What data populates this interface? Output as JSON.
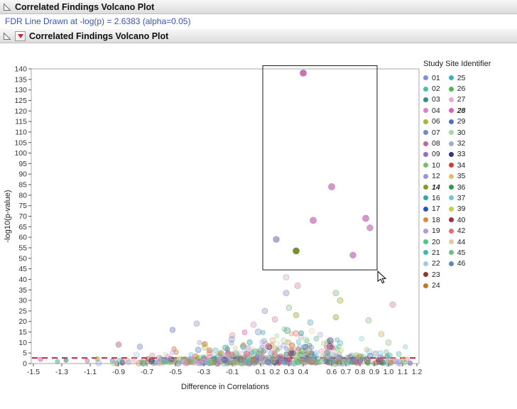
{
  "window": {
    "outline1_title": "Correlated Findings Volcano Plot",
    "fdr_note": "FDR Line Drawn at -log(p) = 2.6383 (alpha=0.05)",
    "outline2_title": "Correlated Findings Volcano Plot"
  },
  "legend": {
    "title": "Study Site Identifier",
    "emphasized": [
      "14",
      "28"
    ],
    "columns": [
      [
        {
          "label": "01",
          "color": "#8090d8"
        },
        {
          "label": "02",
          "color": "#58b8a0"
        },
        {
          "label": "03",
          "color": "#30907c"
        },
        {
          "label": "04",
          "color": "#d880c8"
        },
        {
          "label": "06",
          "color": "#a8b440"
        },
        {
          "label": "07",
          "color": "#7088cc"
        },
        {
          "label": "08",
          "color": "#c06890"
        },
        {
          "label": "09",
          "color": "#9070c4"
        },
        {
          "label": "10",
          "color": "#70c070"
        },
        {
          "label": "12",
          "color": "#a090d8"
        },
        {
          "label": "14",
          "color": "#8a9a1e"
        },
        {
          "label": "16",
          "color": "#38a0b0"
        },
        {
          "label": "17",
          "color": "#2858a8"
        },
        {
          "label": "18",
          "color": "#e08838"
        },
        {
          "label": "19",
          "color": "#b898d4"
        },
        {
          "label": "20",
          "color": "#48c880"
        },
        {
          "label": "21",
          "color": "#38bdaa"
        },
        {
          "label": "22",
          "color": "#a0c8e8"
        },
        {
          "label": "23",
          "color": "#8c3838"
        },
        {
          "label": "24",
          "color": "#c07830"
        }
      ],
      [
        {
          "label": "25",
          "color": "#40b0b8"
        },
        {
          "label": "26",
          "color": "#50b850"
        },
        {
          "label": "27",
          "color": "#eca8cc"
        },
        {
          "label": "28",
          "color": "#e060b8"
        },
        {
          "label": "29",
          "color": "#5070c8"
        },
        {
          "label": "30",
          "color": "#a8d8a0"
        },
        {
          "label": "32",
          "color": "#a0b0c0"
        },
        {
          "label": "33",
          "color": "#343478"
        },
        {
          "label": "34",
          "color": "#d04038"
        },
        {
          "label": "35",
          "color": "#d8c070"
        },
        {
          "label": "36",
          "color": "#309848"
        },
        {
          "label": "37",
          "color": "#80bde0"
        },
        {
          "label": "39",
          "color": "#c0d050"
        },
        {
          "label": "40",
          "color": "#a03048"
        },
        {
          "label": "42",
          "color": "#e07070"
        },
        {
          "label": "44",
          "color": "#e0c8a0"
        },
        {
          "label": "45",
          "color": "#70bc88"
        },
        {
          "label": "46",
          "color": "#6088b8"
        }
      ]
    ]
  },
  "chart_data": {
    "type": "scatter",
    "title": "Correlated Findings Volcano Plot",
    "xlabel": "Difference in Correlations",
    "ylabel": "-log10(p-value)",
    "xlim": [
      -1.515,
      1.215
    ],
    "ylim": [
      0,
      140
    ],
    "y_ticks": {
      "min": 0,
      "max": 140,
      "step": 5
    },
    "x_tick_labels": [
      "-1.5",
      "-1.3",
      "-1.1",
      "-0.9",
      "-0.7",
      "-0.5",
      "-0.3",
      "-0.1",
      "0.1",
      "0.2",
      "0.3",
      "0.4",
      "0.6",
      "0.7",
      "0.8",
      "0.9",
      "1.0",
      "1.1",
      "1.2"
    ],
    "fdr_line": {
      "y": 2.6383,
      "alpha_level": 0.05,
      "color": "#c8233a",
      "style": "dashed"
    },
    "selection_rect": {
      "x1": 0.115,
      "y1": 44.5,
      "x2": 0.92,
      "y2": 141.5
    },
    "highlight_points": [
      {
        "x": 0.4,
        "y": 138.0,
        "color": "#c85fb4",
        "alpha": 0.9,
        "r": 4.6
      },
      {
        "x": 0.6,
        "y": 84.0,
        "color": "#d583c6",
        "alpha": 0.85,
        "r": 4.6
      },
      {
        "x": 0.47,
        "y": 68.0,
        "color": "#d583c6",
        "alpha": 0.85,
        "r": 4.6
      },
      {
        "x": 0.84,
        "y": 69.0,
        "color": "#d583c6",
        "alpha": 0.85,
        "r": 4.6
      },
      {
        "x": 0.87,
        "y": 64.5,
        "color": "#d583c6",
        "alpha": 0.8,
        "r": 4.4
      },
      {
        "x": 0.21,
        "y": 59.0,
        "color": "#a98fd0",
        "alpha": 0.8,
        "r": 4.4
      },
      {
        "x": 0.35,
        "y": 53.5,
        "color": "#6f8a1a",
        "alpha": 0.95,
        "r": 4.6
      },
      {
        "x": 0.75,
        "y": 51.5,
        "color": "#d583c6",
        "alpha": 0.85,
        "r": 4.4
      }
    ],
    "mid_points": [
      {
        "x": 0.36,
        "y": 37.0,
        "color": "#e8a8c8",
        "alpha": 0.55,
        "r": 4.2
      },
      {
        "x": 0.28,
        "y": 41.0,
        "color": "#e0b8d8",
        "alpha": 0.45,
        "r": 4.0
      },
      {
        "x": 0.28,
        "y": 33.5,
        "color": "#b39ddb",
        "alpha": 0.5,
        "r": 4.2
      },
      {
        "x": 0.63,
        "y": 33.5,
        "color": "#a8d8a0",
        "alpha": 0.6,
        "r": 4.2
      },
      {
        "x": 0.66,
        "y": 30.0,
        "color": "#c2d45e",
        "alpha": 0.55,
        "r": 4.2
      },
      {
        "x": 1.03,
        "y": 28.0,
        "color": "#e8a8c8",
        "alpha": 0.6,
        "r": 4.2
      },
      {
        "x": 0.3,
        "y": 26.5,
        "color": "#a8d8a0",
        "alpha": 0.5,
        "r": 4.0
      },
      {
        "x": 0.13,
        "y": 25.0,
        "color": "#b39ddb",
        "alpha": 0.45,
        "r": 4.0
      },
      {
        "x": 0.35,
        "y": 23.0,
        "color": "#b4bc4a",
        "alpha": 0.5,
        "r": 4.0
      },
      {
        "x": 0.63,
        "y": 22.0,
        "color": "#b4bc4a",
        "alpha": 0.5,
        "r": 4.0
      },
      {
        "x": 0.2,
        "y": 21.0,
        "color": "#e8a8c8",
        "alpha": 0.5,
        "r": 4.0
      },
      {
        "x": 0.86,
        "y": 20.5,
        "color": "#a8d8a0",
        "alpha": 0.5,
        "r": 4.0
      },
      {
        "x": 0.45,
        "y": 19.5,
        "color": "#88c0e0",
        "alpha": 0.5,
        "r": 4.0
      },
      {
        "x": -0.35,
        "y": 19.0,
        "color": "#b39ddb",
        "alpha": 0.45,
        "r": 4.0
      },
      {
        "x": 0.05,
        "y": 18.5,
        "color": "#e8a8c8",
        "alpha": 0.45,
        "r": 4.0
      },
      {
        "x": -0.52,
        "y": 16.0,
        "color": "#8090d8",
        "alpha": 0.5,
        "r": 4.0
      },
      {
        "x": -0.9,
        "y": 9.0,
        "color": "#c06890",
        "alpha": 0.5,
        "r": 4.0
      },
      {
        "x": -0.75,
        "y": 8.0,
        "color": "#8090d8",
        "alpha": 0.45,
        "r": 4.0
      },
      {
        "x": 0.95,
        "y": 14.0,
        "color": "#d8c070",
        "alpha": 0.45,
        "r": 4.0
      },
      {
        "x": 1.0,
        "y": 10.0,
        "color": "#a8d8a0",
        "alpha": 0.45,
        "r": 4.0
      }
    ],
    "edge_points": [
      {
        "x": -1.45,
        "y": 2.0,
        "color": "#d880c8",
        "alpha": 0.7,
        "r": 3.2
      },
      {
        "x": -1.33,
        "y": 0.9,
        "color": "#58b8a0",
        "alpha": 0.6,
        "r": 3.2
      },
      {
        "x": -1.27,
        "y": 1.6,
        "color": "#30907c",
        "alpha": 0.6,
        "r": 3.2
      },
      {
        "x": -1.12,
        "y": 1.2,
        "color": "#d880c8",
        "alpha": 0.6,
        "r": 3.2
      },
      {
        "x": -1.05,
        "y": 2.2,
        "color": "#a8b440",
        "alpha": 0.6,
        "r": 3.2
      },
      {
        "x": 1.08,
        "y": 1.0,
        "color": "#a0c8e8",
        "alpha": 0.6,
        "r": 3.2
      },
      {
        "x": 1.13,
        "y": 2.0,
        "color": "#e8a8c8",
        "alpha": 0.6,
        "r": 3.2
      }
    ],
    "cloud": {
      "seed": 20240613,
      "count": 620,
      "x_mean": 0.18,
      "x_sd": 0.5,
      "x_min": -1.14,
      "x_max": 1.16,
      "y_scale_base": 1.6,
      "y_scale_peak": 5.2,
      "y_peak_x": 0.3,
      "y_peak_width": 0.42,
      "y_cap": 18.5
    }
  }
}
